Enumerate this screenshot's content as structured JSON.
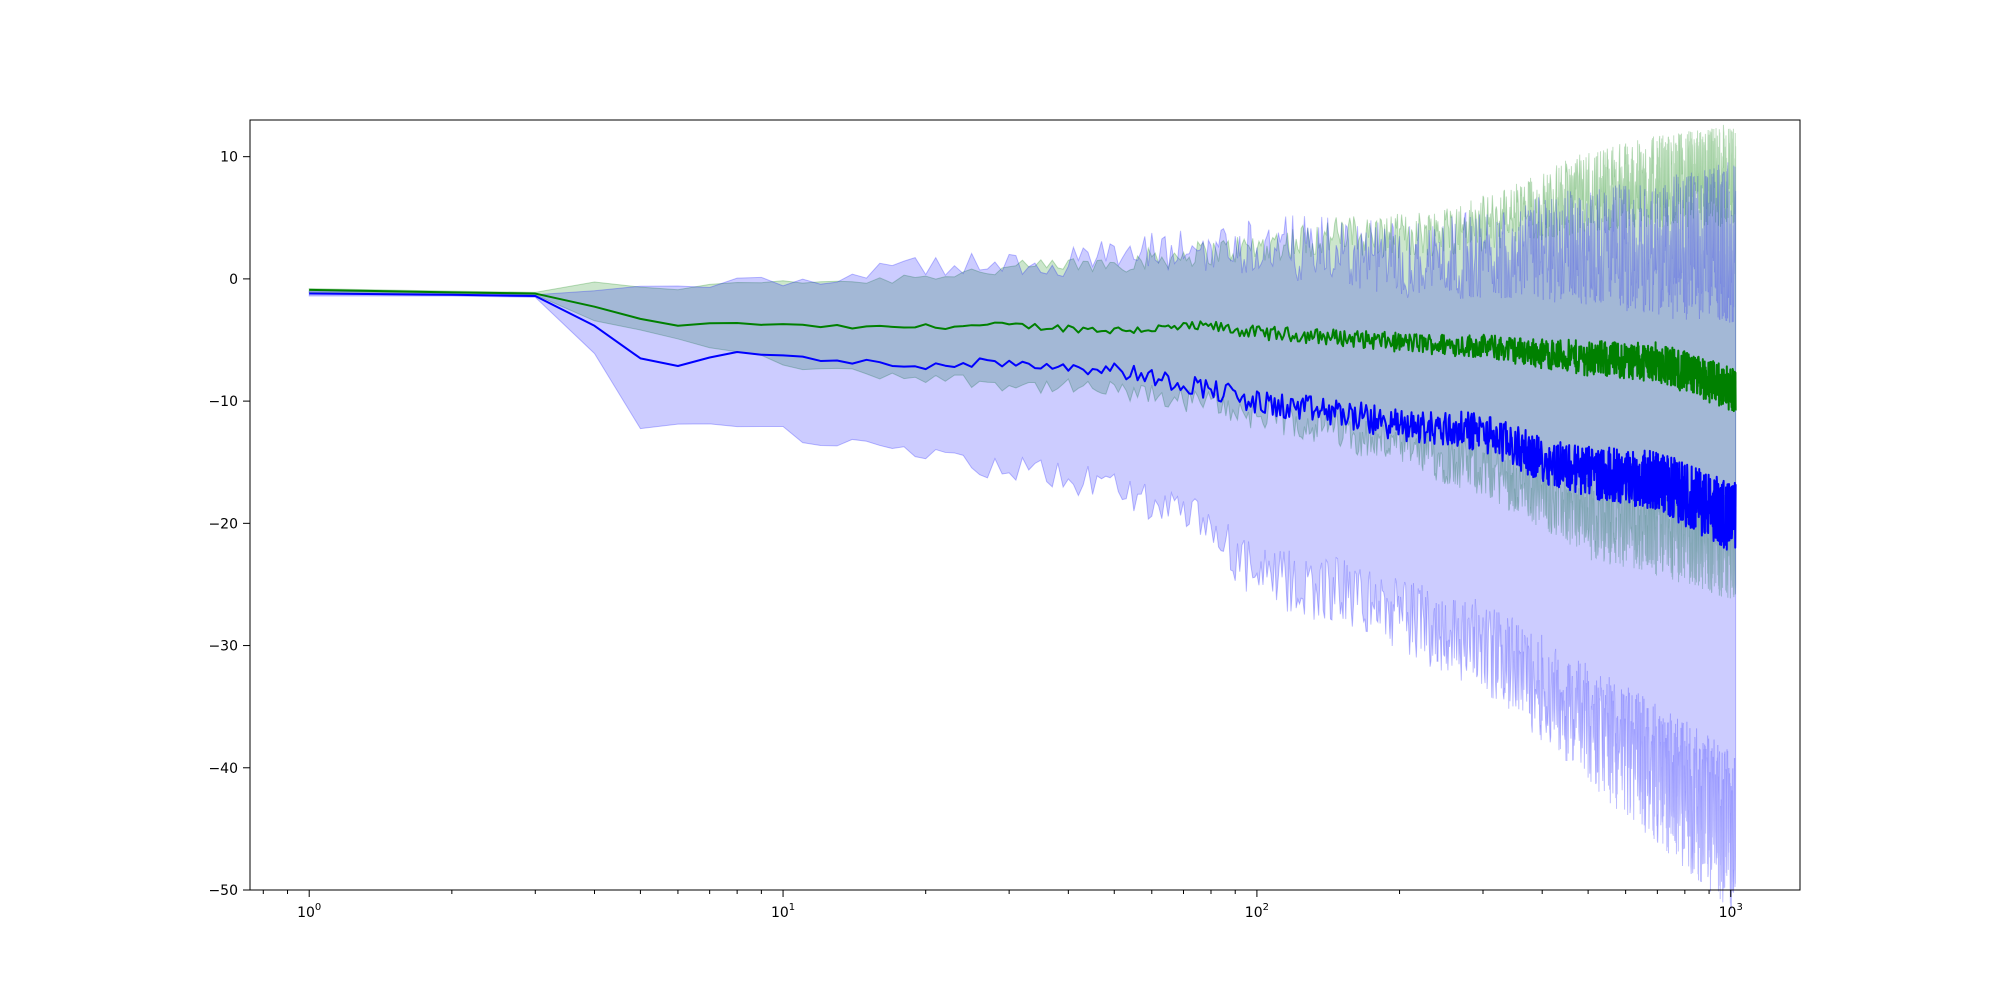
{
  "chart_data": {
    "type": "line",
    "title": "",
    "xlabel": "",
    "ylabel": "",
    "x_scale": "log",
    "xlim": [
      0.75,
      1400
    ],
    "ylim": [
      -50,
      13
    ],
    "grid": false,
    "legend": "none",
    "x_ticks": [
      {
        "value": 1,
        "base": "10",
        "exp": "0"
      },
      {
        "value": 10,
        "base": "10",
        "exp": "1"
      },
      {
        "value": 100,
        "base": "10",
        "exp": "2"
      },
      {
        "value": 1000,
        "base": "10",
        "exp": "3"
      }
    ],
    "y_ticks": [
      {
        "value": 10,
        "label": "10"
      },
      {
        "value": 0,
        "label": "0"
      },
      {
        "value": -10,
        "label": "−10"
      },
      {
        "value": -20,
        "label": "−20"
      },
      {
        "value": -30,
        "label": "−30"
      },
      {
        "value": -40,
        "label": "−40"
      },
      {
        "value": -50,
        "label": "−50"
      }
    ],
    "series": [
      {
        "color": "#008000",
        "band_color": "#008000",
        "band_opacity": 0.2,
        "x": [
          1,
          2,
          3,
          4,
          5,
          6,
          8,
          10,
          15,
          20,
          30,
          50,
          80,
          100,
          150,
          200,
          300,
          400,
          500,
          700,
          1000
        ],
        "mean": [
          -0.9,
          -1.1,
          -1.2,
          -2.3,
          -3.3,
          -3.8,
          -3.6,
          -3.8,
          -4.0,
          -3.9,
          -3.8,
          -4.2,
          -3.9,
          -4.4,
          -4.8,
          -5.2,
          -5.5,
          -6.1,
          -6.5,
          -6.8,
          -9.0
        ],
        "upper": [
          -0.8,
          -1.0,
          -1.1,
          -0.3,
          -0.6,
          -0.8,
          -0.4,
          -0.1,
          -0.2,
          0.3,
          0.8,
          1.3,
          2.2,
          2.6,
          3.6,
          3.5,
          4.5,
          6.0,
          7.2,
          8.0,
          8.5
        ],
        "lower": [
          -1.1,
          -1.2,
          -1.3,
          -3.4,
          -4.2,
          -5.0,
          -5.9,
          -7.0,
          -7.8,
          -8.0,
          -8.6,
          -9.2,
          -10.2,
          -11.2,
          -12.3,
          -13.8,
          -15.5,
          -17.6,
          -19.6,
          -20.5,
          -22.0
        ]
      },
      {
        "color": "#0000ff",
        "band_color": "#0000ff",
        "band_opacity": 0.2,
        "x": [
          1,
          2,
          3,
          4,
          5,
          6,
          8,
          10,
          15,
          20,
          30,
          50,
          80,
          100,
          150,
          200,
          300,
          400,
          500,
          700,
          1000
        ],
        "mean": [
          -1.2,
          -1.3,
          -1.4,
          -3.8,
          -6.6,
          -7.0,
          -6.0,
          -6.4,
          -6.9,
          -7.0,
          -6.8,
          -7.4,
          -9.0,
          -10.2,
          -11.0,
          -12.0,
          -12.5,
          -14.8,
          -15.8,
          -16.5,
          -19.5
        ],
        "upper": [
          -1.0,
          -1.1,
          -1.3,
          -0.9,
          -0.5,
          -0.4,
          -0.4,
          -0.2,
          0.5,
          1.0,
          1.2,
          1.8,
          2.5,
          2.8,
          2.2,
          1.5,
          2.0,
          2.5,
          2.8,
          2.5,
          3.0
        ],
        "lower": [
          -1.4,
          -1.4,
          -1.5,
          -6.2,
          -12.0,
          -12.3,
          -11.8,
          -12.6,
          -13.8,
          -14.8,
          -15.5,
          -17.0,
          -20.5,
          -24.5,
          -25.5,
          -27.5,
          -30.0,
          -33.5,
          -36.5,
          -40.5,
          -45.0
        ]
      }
    ]
  }
}
